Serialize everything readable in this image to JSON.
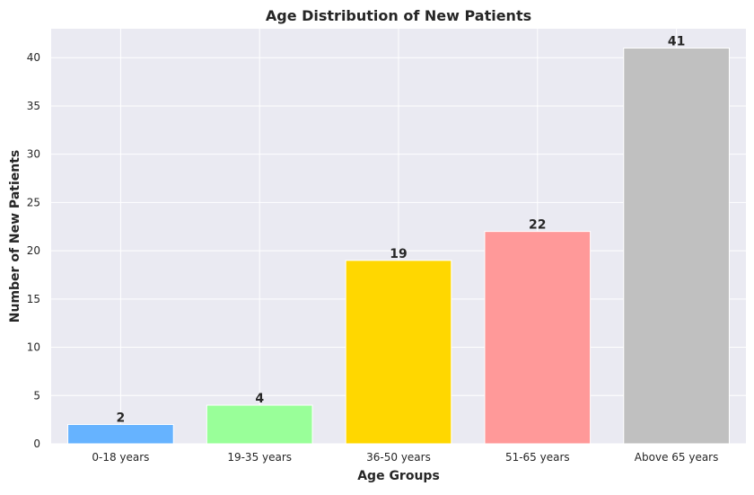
{
  "chart_data": {
    "type": "bar",
    "title": "Age Distribution of New Patients",
    "xlabel": "Age Groups",
    "ylabel": "Number of New Patients",
    "categories": [
      "0-18 years",
      "19-35 years",
      "36-50 years",
      "51-65 years",
      "Above 65 years"
    ],
    "values": [
      2,
      4,
      19,
      22,
      41
    ],
    "bar_colors": [
      "#66b3ff",
      "#99ff99",
      "#ffd700",
      "#ff9999",
      "#c0c0c0"
    ],
    "ylim": [
      0,
      43
    ],
    "yticks": [
      "0",
      "5",
      "10",
      "15",
      "20",
      "25",
      "30",
      "35",
      "40"
    ],
    "grid": true,
    "background": "#eaeaf2"
  }
}
